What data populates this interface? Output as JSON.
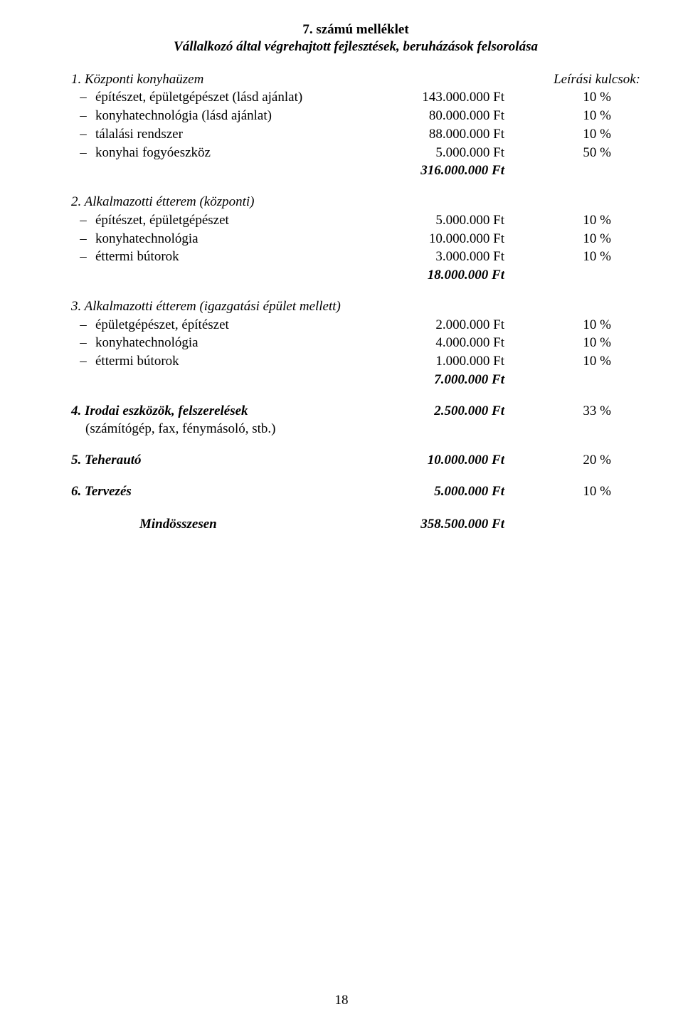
{
  "title": {
    "line1": "7. számú melléklet",
    "line2": "Vállalkozó által végrehajtott fejlesztések, beruházások felsorolása"
  },
  "kulcsok_label": "Leírási kulcsok:",
  "sections": [
    {
      "heading": "1. Központi konyhaüzem",
      "items": [
        {
          "label": "építészet, épületgépészet (lásd ajánlat)",
          "amount": "143.000.000 Ft",
          "pct": "10 %"
        },
        {
          "label": "konyhatechnológia (lásd ajánlat)",
          "amount": "80.000.000 Ft",
          "pct": "10 %"
        },
        {
          "label": "tálalási rendszer",
          "amount": "88.000.000 Ft",
          "pct": "10 %"
        },
        {
          "label": "konyhai fogyóeszköz",
          "amount": "5.000.000 Ft",
          "pct": "50 %"
        }
      ],
      "subtotal": "316.000.000 Ft"
    },
    {
      "heading": "2. Alkalmazotti étterem (központi)",
      "items": [
        {
          "label": "építészet, épületgépészet",
          "amount": "5.000.000 Ft",
          "pct": "10 %"
        },
        {
          "label": "konyhatechnológia",
          "amount": "10.000.000 Ft",
          "pct": "10 %"
        },
        {
          "label": "éttermi bútorok",
          "amount": "3.000.000 Ft",
          "pct": "10 %"
        }
      ],
      "subtotal": "18.000.000 Ft"
    },
    {
      "heading": "3. Alkalmazotti étterem (igazgatási épület mellett)",
      "items": [
        {
          "label": "épületgépészet, építészet",
          "amount": "2.000.000 Ft",
          "pct": "10 %"
        },
        {
          "label": "konyhatechnológia",
          "amount": "4.000.000 Ft",
          "pct": "10 %"
        },
        {
          "label": "éttermi bútorok",
          "amount": "1.000.000 Ft",
          "pct": "10 %"
        }
      ],
      "subtotal": "7.000.000 Ft"
    }
  ],
  "singles": [
    {
      "label": "4. Irodai eszközök, felszerelések",
      "note": "(számítógép, fax, fénymásoló, stb.)",
      "amount": "2.500.000 Ft",
      "pct": "33 %"
    },
    {
      "label": "5. Teherautó",
      "note": "",
      "amount": "10.000.000 Ft",
      "pct": "20 %"
    },
    {
      "label": "6. Tervezés",
      "note": "",
      "amount": "5.000.000 Ft",
      "pct": "10 %"
    }
  ],
  "total": {
    "label": "Mindösszesen",
    "amount": "358.500.000 Ft"
  },
  "dash": "–",
  "page_number": "18"
}
